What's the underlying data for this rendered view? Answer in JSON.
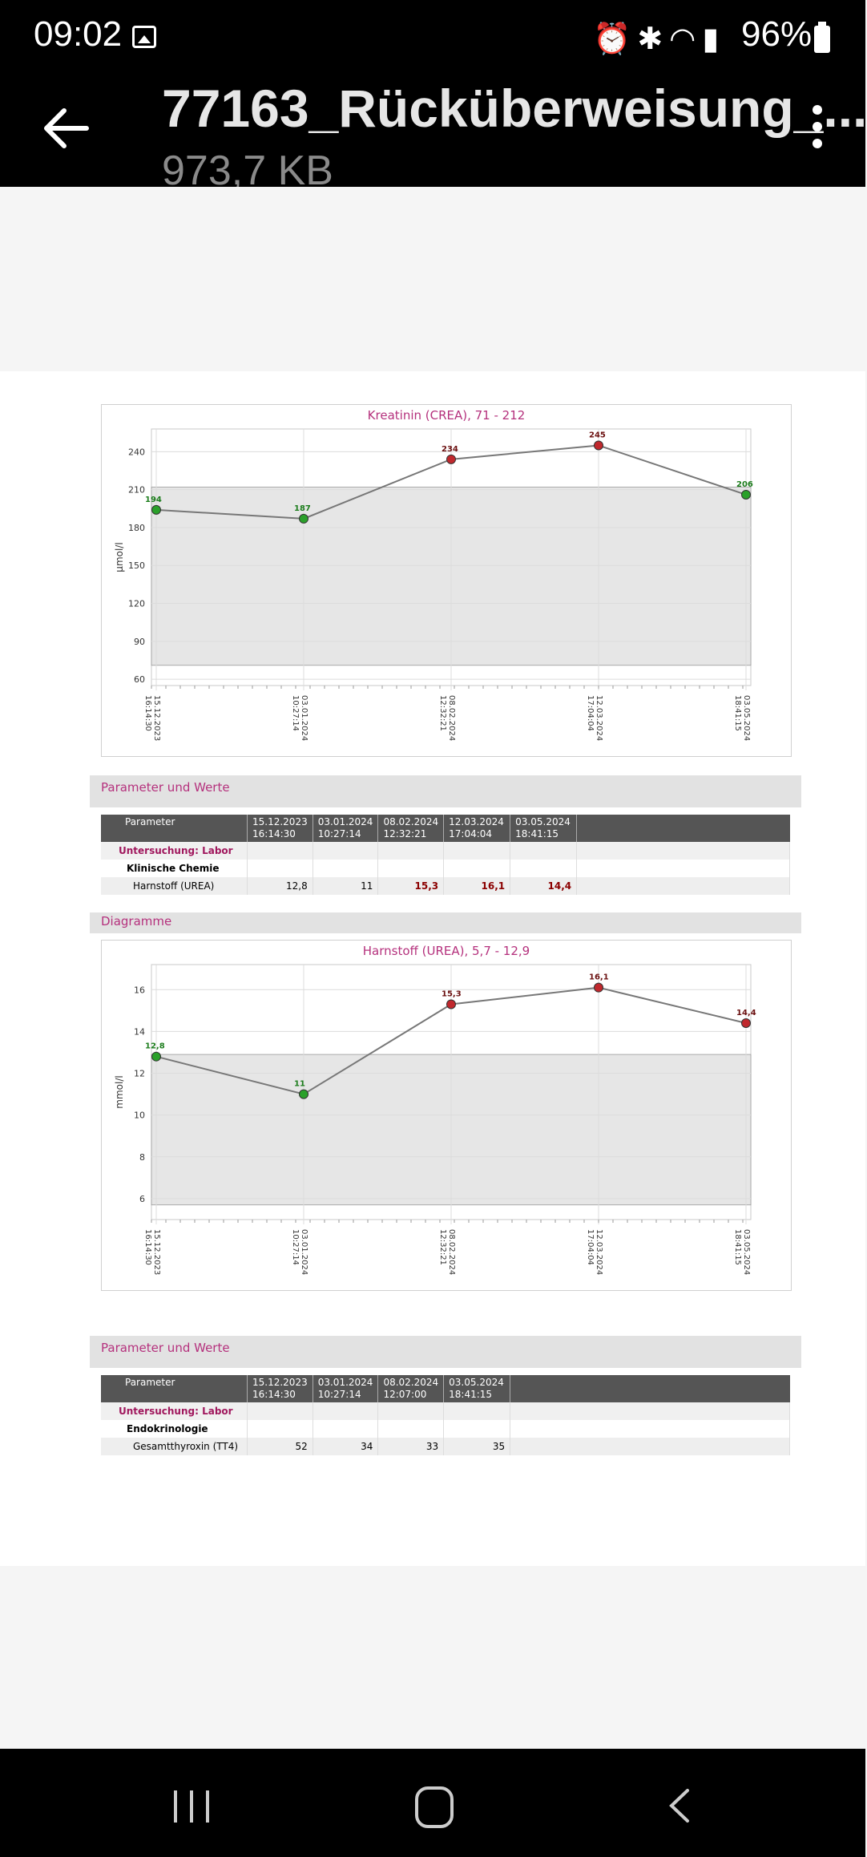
{
  "status_bar": {
    "time": "09:02",
    "battery": "96%",
    "icons": [
      "gallery-icon",
      "alarm-icon",
      "bluetooth-icon",
      "wifi-icon",
      "signal-icon",
      "battery-icon"
    ]
  },
  "app_bar": {
    "title": "77163_Rücküberweisung_...",
    "file_size": "973,7 KB"
  },
  "document": {
    "chart1": {
      "title": "Kreatinin (CREA), 71 - 212",
      "ylabel": "µmol/l",
      "yticks": [
        "60",
        "90",
        "120",
        "150",
        "180",
        "210",
        "240"
      ],
      "xticks": [
        {
          "date": "15.12.2023",
          "time": "16:14:30"
        },
        {
          "date": "03.01.2024",
          "time": "10:27:14"
        },
        {
          "date": "08.02.2024",
          "time": "12:32:21"
        },
        {
          "date": "12.03.2024",
          "time": "17:04:04"
        },
        {
          "date": "03.05.2024",
          "time": "18:41:15"
        }
      ],
      "point_labels": [
        "194",
        "187",
        "234",
        "245",
        "206"
      ]
    },
    "section1_header": "Parameter und Werte",
    "table1": {
      "headers": [
        {
          "label": "Parameter",
          "line2": ""
        },
        {
          "label": "15.12.2023",
          "line2": "16:14:30"
        },
        {
          "label": "03.01.2024",
          "line2": "10:27:14"
        },
        {
          "label": "08.02.2024",
          "line2": "12:32:21"
        },
        {
          "label": "12.03.2024",
          "line2": "17:04:04"
        },
        {
          "label": "03.05.2024",
          "line2": "18:41:15"
        }
      ],
      "exam": "Untersuchung: Labor",
      "group": "Klinische Chemie",
      "param": "Harnstoff (UREA)",
      "values": [
        "12,8",
        "11",
        "15,3",
        "16,1",
        "14,4"
      ]
    },
    "section2_header": "Diagramme",
    "chart2": {
      "title": "Harnstoff (UREA), 5,7 - 12,9",
      "ylabel": "mmol/l",
      "yticks": [
        "6",
        "8",
        "10",
        "12",
        "14",
        "16"
      ],
      "xticks": [
        {
          "date": "15.12.2023",
          "time": "16:14:30"
        },
        {
          "date": "03.01.2024",
          "time": "10:27:14"
        },
        {
          "date": "08.02.2024",
          "time": "12:32:21"
        },
        {
          "date": "12.03.2024",
          "time": "17:04:04"
        },
        {
          "date": "03.05.2024",
          "time": "18:41:15"
        }
      ],
      "point_labels": [
        "12,8",
        "11",
        "15,3",
        "16,1",
        "14,4"
      ]
    },
    "section3_header": "Parameter und Werte",
    "table2": {
      "headers": [
        {
          "label": "Parameter",
          "line2": ""
        },
        {
          "label": "15.12.2023",
          "line2": "16:14:30"
        },
        {
          "label": "03.01.2024",
          "line2": "10:27:14"
        },
        {
          "label": "08.02.2024",
          "line2": "12:07:00"
        },
        {
          "label": "03.05.2024",
          "line2": "18:41:15"
        }
      ],
      "exam": "Untersuchung: Labor",
      "group": "Endokrinologie",
      "param": "Gesamtthyroxin (TT4)",
      "values": [
        "52",
        "34",
        "33",
        "35"
      ]
    }
  },
  "chart_data": [
    {
      "type": "line",
      "title": "Kreatinin (CREA), 71 - 212",
      "ylabel": "µmol/l",
      "xlabel": "",
      "categories": [
        "15.12.2023 16:14:30",
        "03.01.2024 10:27:14",
        "08.02.2024 12:32:21",
        "12.03.2024 17:04:04",
        "03.05.2024 18:41:15"
      ],
      "values": [
        194,
        187,
        234,
        245,
        206
      ],
      "reference_range": [
        71,
        212
      ],
      "ylim": [
        55,
        258
      ],
      "point_colors": [
        "#2aa02a",
        "#2aa02a",
        "#c0282d",
        "#c0282d",
        "#2aa02a"
      ],
      "grid": true
    },
    {
      "type": "line",
      "title": "Harnstoff (UREA), 5,7 - 12,9",
      "ylabel": "mmol/l",
      "xlabel": "",
      "categories": [
        "15.12.2023 16:14:30",
        "03.01.2024 10:27:14",
        "08.02.2024 12:32:21",
        "12.03.2024 17:04:04",
        "03.05.2024 18:41:15"
      ],
      "values": [
        12.8,
        11,
        15.3,
        16.1,
        14.4
      ],
      "reference_range": [
        5.7,
        12.9
      ],
      "ylim": [
        5,
        17.2
      ],
      "point_colors": [
        "#2aa02a",
        "#2aa02a",
        "#c0282d",
        "#c0282d",
        "#c0282d"
      ],
      "grid": true
    }
  ]
}
